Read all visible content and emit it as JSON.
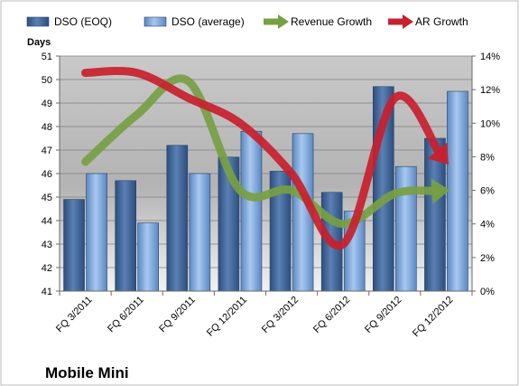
{
  "chart_data": {
    "type": "bar",
    "title": "Mobile Mini",
    "ylabel_left": "Days",
    "categories": [
      "FQ 3/2011",
      "FQ 6/2011",
      "FQ 9/2011",
      "FQ 12/2011",
      "FQ 3/2012",
      "FQ 6/2012",
      "FQ 9/2012",
      "FQ 12/2012"
    ],
    "series": [
      {
        "name": "DSO (EOQ)",
        "type": "bar",
        "axis": "left",
        "values": [
          44.9,
          45.7,
          47.2,
          46.7,
          46.1,
          45.2,
          49.7,
          47.5
        ],
        "color": "#3d6192"
      },
      {
        "name": "DSO (average)",
        "type": "bar",
        "axis": "left",
        "values": [
          46.0,
          43.9,
          46.0,
          47.8,
          47.7,
          44.4,
          46.3,
          49.5
        ],
        "color": "#6f9dd5"
      },
      {
        "name": "Revenue Growth",
        "type": "line",
        "axis": "right",
        "values": [
          0.077,
          0.105,
          0.125,
          0.06,
          0.06,
          0.04,
          0.058,
          0.06
        ],
        "color": "#77a043"
      },
      {
        "name": "AR Growth",
        "type": "line",
        "axis": "right",
        "values": [
          0.13,
          0.13,
          0.115,
          0.1,
          0.07,
          0.028,
          0.115,
          0.077
        ],
        "color": "#c8202e"
      }
    ],
    "y_left": {
      "min": 41,
      "max": 51,
      "step": 1,
      "ticks": [
        "41",
        "42",
        "43",
        "44",
        "45",
        "46",
        "47",
        "48",
        "49",
        "50",
        "51"
      ]
    },
    "y_right": {
      "min": 0,
      "max": 0.14,
      "step": 0.02,
      "ticks": [
        "0%",
        "2%",
        "4%",
        "6%",
        "8%",
        "10%",
        "12%",
        "14%"
      ]
    },
    "legend_position": "top",
    "grid": true
  }
}
